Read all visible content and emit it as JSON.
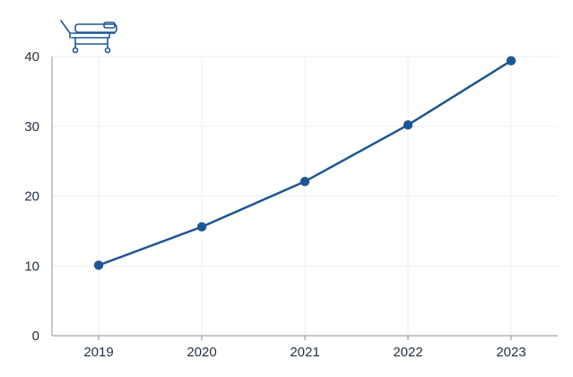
{
  "chart_data": {
    "type": "line",
    "title": "",
    "xlabel": "",
    "ylabel": "",
    "x": [
      "2019",
      "2020",
      "2021",
      "2022",
      "2023"
    ],
    "series": [
      {
        "values": [
          10.1,
          15.6,
          22.1,
          30.2,
          39.4
        ]
      }
    ],
    "ylim": [
      0,
      40
    ],
    "yticks": [
      "0",
      "10",
      "20",
      "30",
      "40"
    ],
    "grid": true,
    "legend": "none"
  },
  "colors": {
    "series": "#1d5694",
    "icon": "#1d5694"
  },
  "icon": "hospital-bed-icon"
}
